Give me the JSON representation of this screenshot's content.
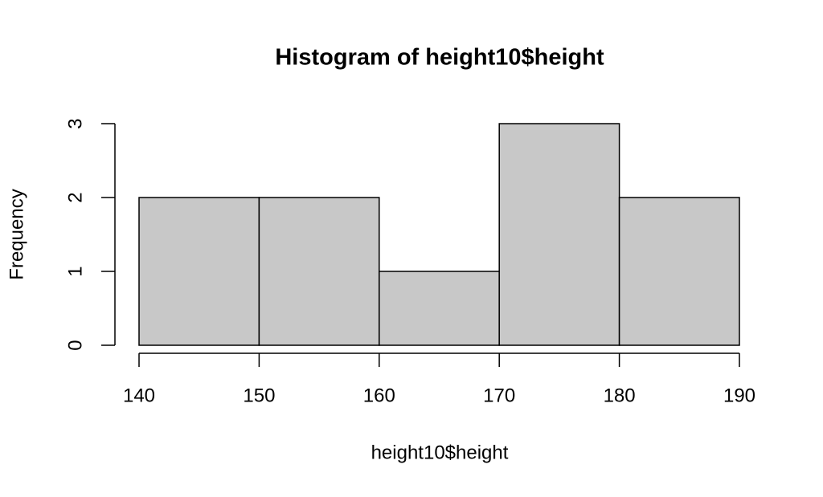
{
  "chart_data": {
    "type": "histogram",
    "title": "Histogram of height10$height",
    "x_label": "height10$height",
    "y_label": "Frequency",
    "bins": [
      140,
      150,
      160,
      170,
      180,
      190
    ],
    "values": [
      2,
      2,
      1,
      3,
      2
    ],
    "color": "#c8c8c8",
    "xlim": [
      140,
      190
    ],
    "xticks": [
      140,
      150,
      160,
      170,
      180,
      190
    ],
    "ylim": [
      0,
      3
    ],
    "yticks": [
      0,
      1,
      2,
      3
    ]
  }
}
